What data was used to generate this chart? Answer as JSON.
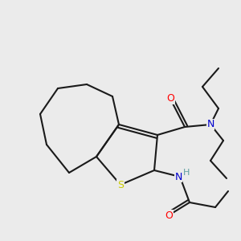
{
  "background_color": "#ebebeb",
  "bond_color": "#1a1a1a",
  "atom_colors": {
    "O": "#ff0000",
    "N": "#0000cd",
    "S": "#cccc00",
    "H": "#5f9ea0",
    "C": "#1a1a1a"
  },
  "figsize": [
    3.0,
    3.0
  ],
  "dpi": 100
}
